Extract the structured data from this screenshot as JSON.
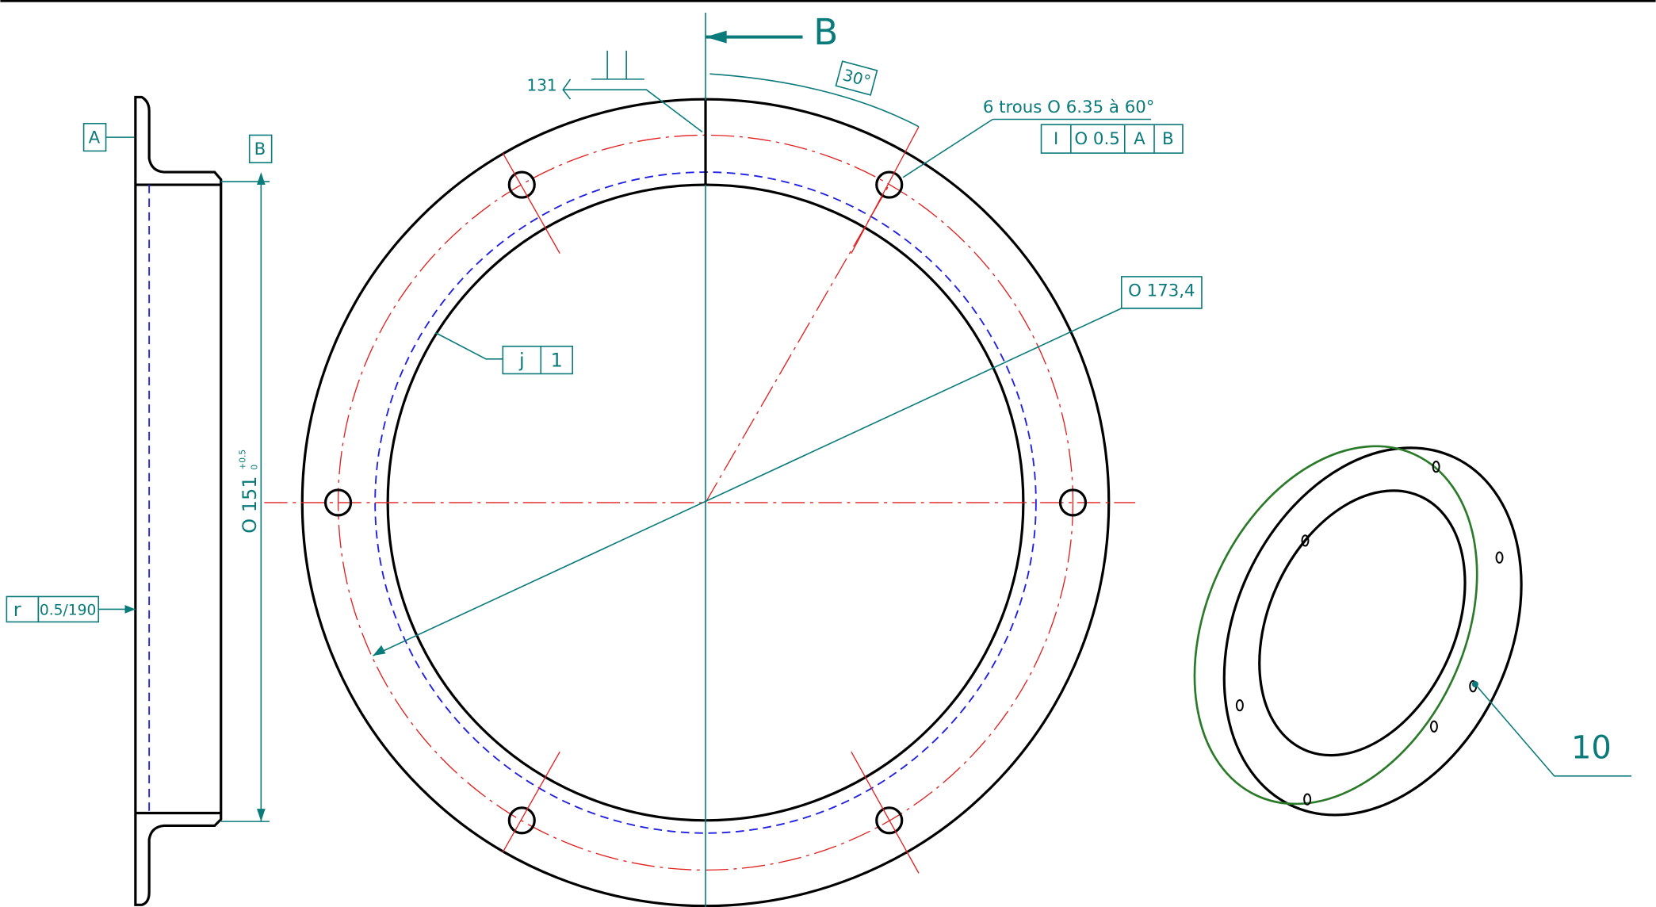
{
  "section_arrow": {
    "label": "B"
  },
  "weld": {
    "label": "131"
  },
  "angle": {
    "label": "30°"
  },
  "holes": {
    "note": "6 trous O 6.35 à 60°",
    "frame": [
      "I",
      "O 0.5",
      "A",
      "B"
    ]
  },
  "diameter_outer": {
    "label": "O 173,4"
  },
  "profile": {
    "frame": [
      "j",
      "1"
    ]
  },
  "datums": [
    "A",
    "B"
  ],
  "dim_inner": {
    "label": "O 151",
    "tol_upper": "+0.5",
    "tol_lower": "0"
  },
  "runout": {
    "frame": [
      "r",
      "0.5/190"
    ]
  },
  "balloon": {
    "label": "10"
  }
}
